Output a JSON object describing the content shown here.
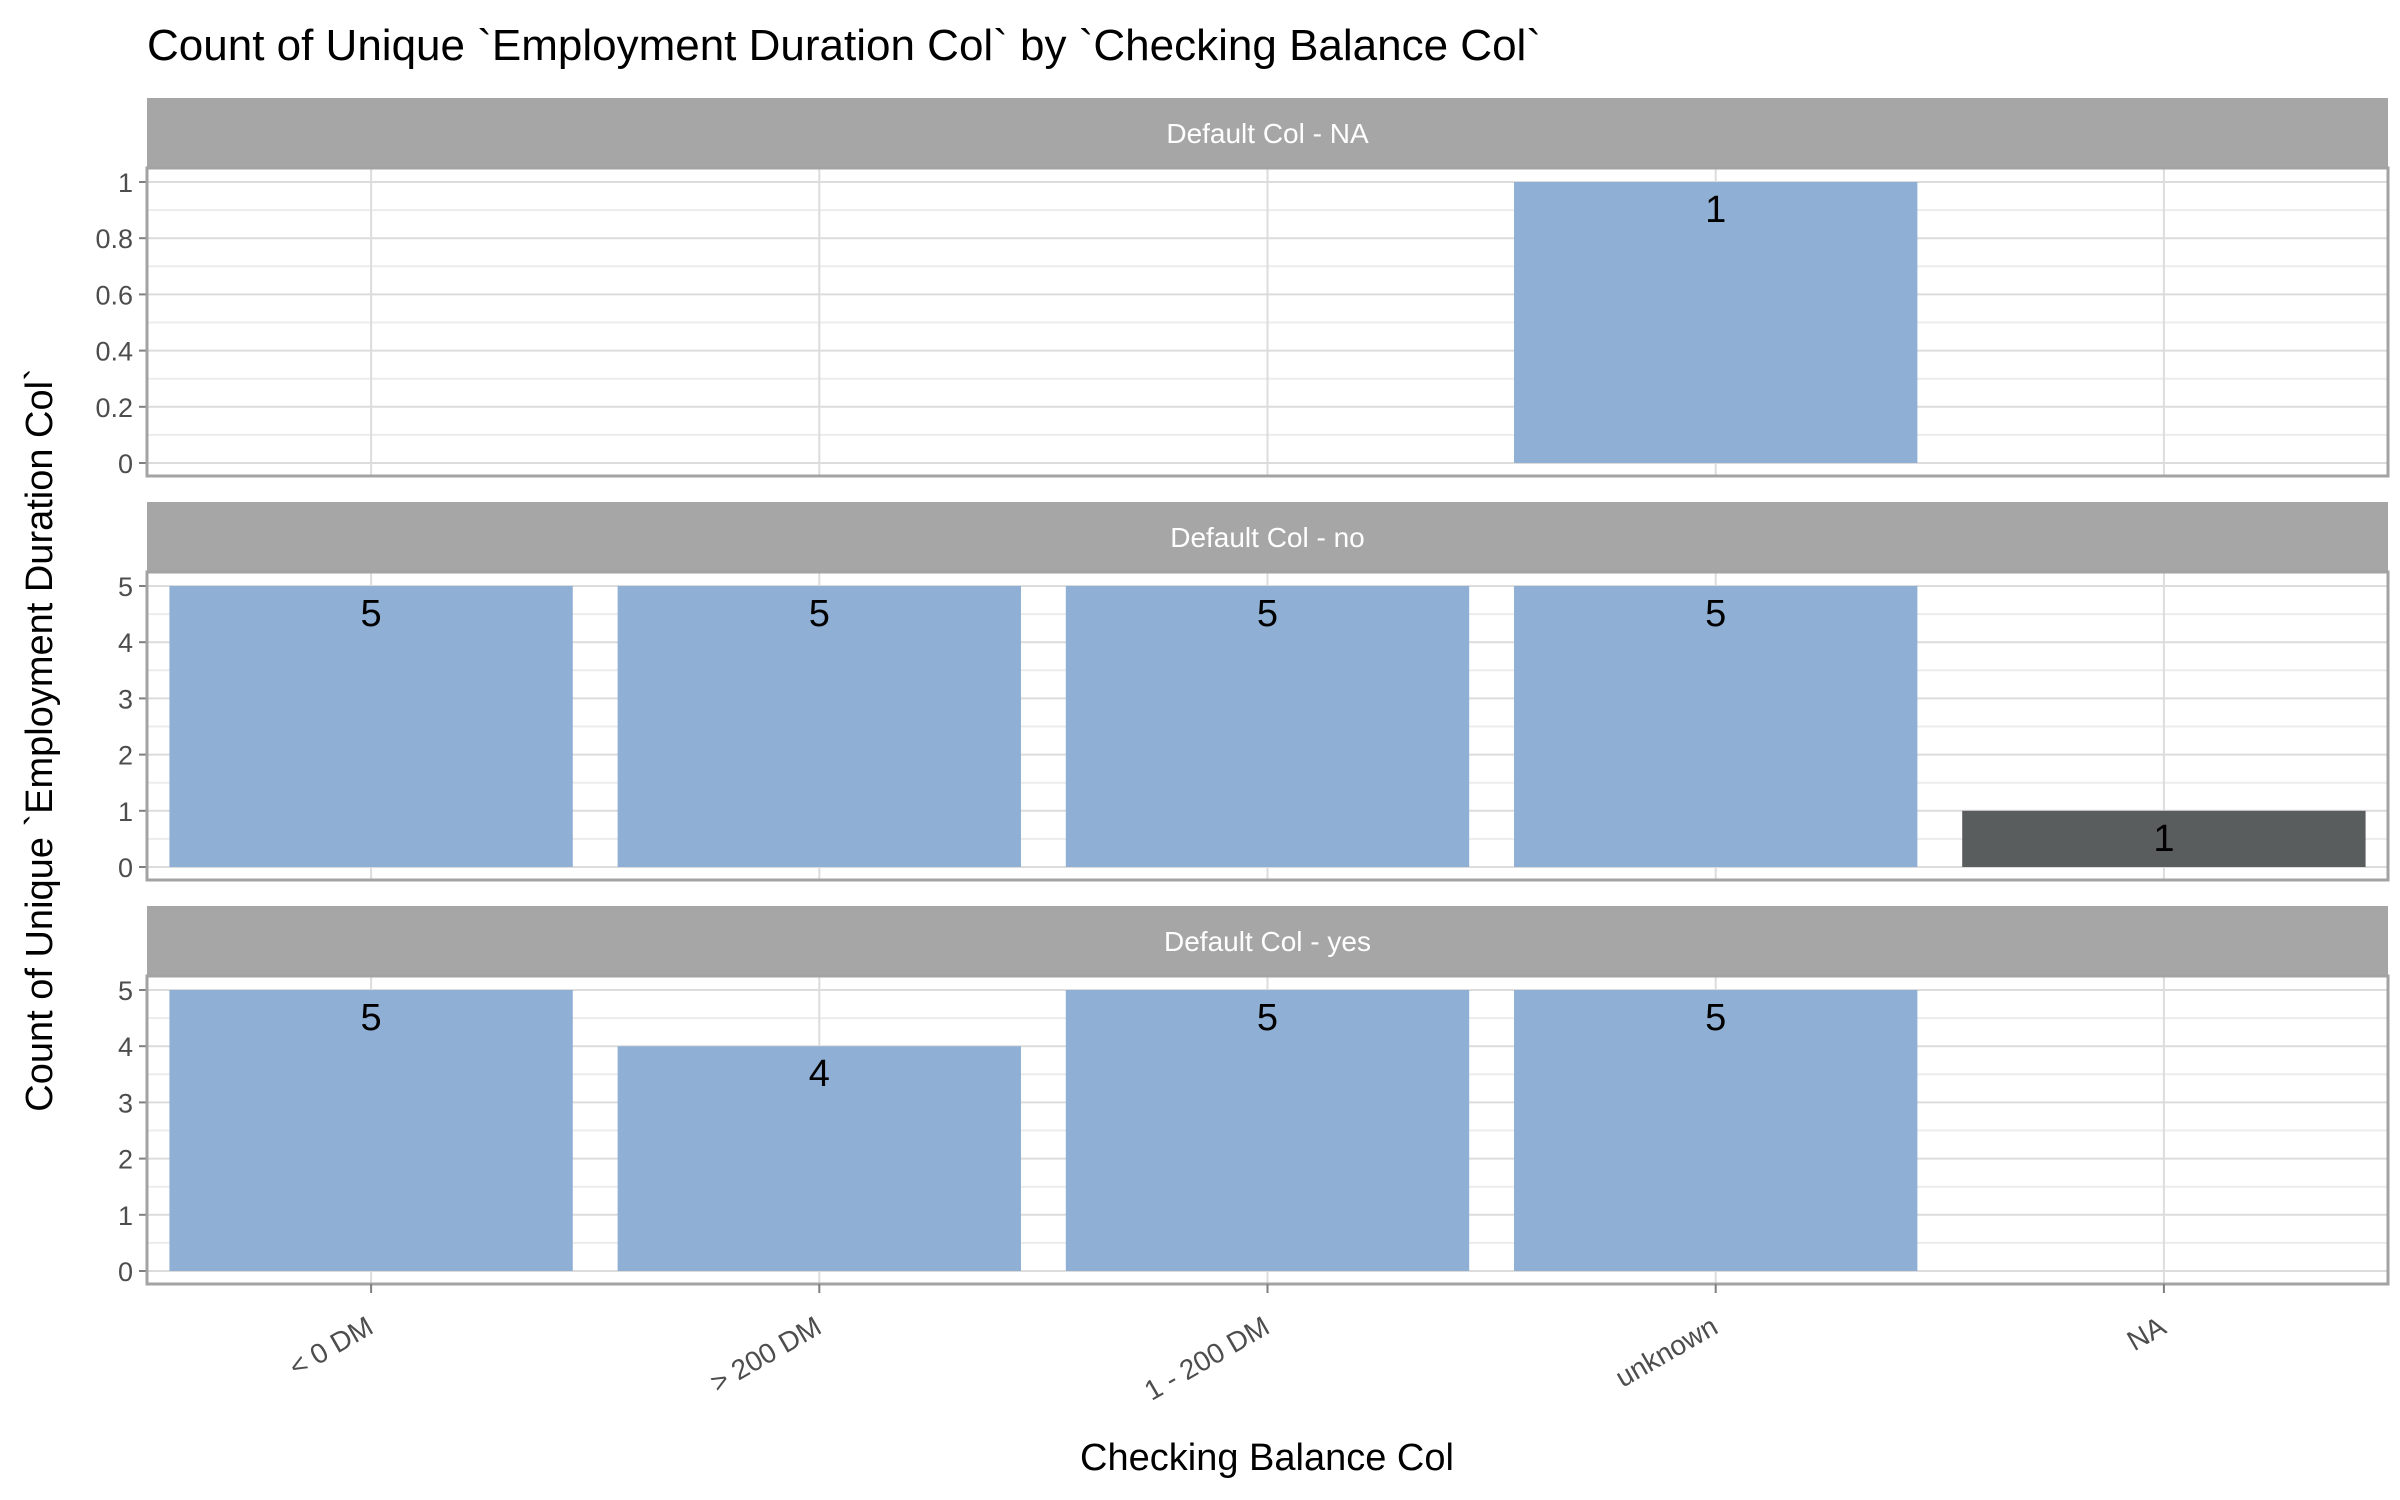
{
  "chart_data": {
    "type": "bar",
    "title": "Count of Unique `Employment Duration Col` by `Checking Balance Col`",
    "xlabel": "Checking Balance Col",
    "ylabel": "Count of Unique `Employment Duration Col`",
    "categories": [
      "< 0 DM",
      "> 200 DM",
      "1 - 200 DM",
      "unknown",
      "NA"
    ],
    "grid": true,
    "facets": [
      {
        "label": "Default Col - NA",
        "ylim": [
          0,
          1
        ],
        "yticks": [
          "0",
          "0.2",
          "0.4",
          "0.6",
          "0.8",
          "1"
        ],
        "ytick_values": [
          0,
          0.2,
          0.4,
          0.6,
          0.8,
          1
        ],
        "values": [
          null,
          null,
          null,
          1,
          null
        ]
      },
      {
        "label": "Default Col - no",
        "ylim": [
          0,
          5
        ],
        "yticks": [
          "0",
          "1",
          "2",
          "3",
          "4",
          "5"
        ],
        "ytick_values": [
          0,
          1,
          2,
          3,
          4,
          5
        ],
        "values": [
          5,
          5,
          5,
          5,
          1
        ]
      },
      {
        "label": "Default Col - yes",
        "ylim": [
          0,
          5
        ],
        "yticks": [
          "0",
          "1",
          "2",
          "3",
          "4",
          "5"
        ],
        "ytick_values": [
          0,
          1,
          2,
          3,
          4,
          5
        ],
        "values": [
          5,
          4,
          5,
          5,
          null
        ]
      }
    ],
    "colors": {
      "bar": "#8fb0d4",
      "bar_na": "#5a5d5e",
      "strip": "#a6a6a6",
      "grid": "#dcdcdc",
      "panel_border": "#a3a3a3"
    }
  }
}
